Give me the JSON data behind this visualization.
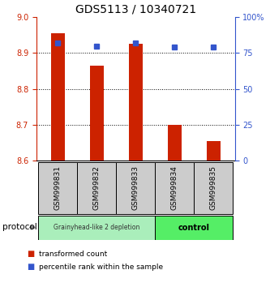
{
  "title": "GDS5113 / 10340721",
  "samples": [
    "GSM999831",
    "GSM999832",
    "GSM999833",
    "GSM999834",
    "GSM999835"
  ],
  "red_values": [
    8.955,
    8.865,
    8.925,
    8.7,
    8.655
  ],
  "blue_values": [
    82,
    80,
    82,
    79,
    79
  ],
  "baseline": 8.6,
  "ylim_left": [
    8.6,
    9.0
  ],
  "ylim_right": [
    0,
    100
  ],
  "yticks_left": [
    8.6,
    8.7,
    8.8,
    8.9,
    9.0
  ],
  "yticks_right": [
    0,
    25,
    50,
    75,
    100
  ],
  "ytick_right_labels": [
    "0",
    "25",
    "50",
    "75",
    "100%"
  ],
  "grid_lines": [
    8.7,
    8.8,
    8.9
  ],
  "red_color": "#cc2200",
  "blue_color": "#3355cc",
  "bar_width": 0.35,
  "group1_label": "Grainyhead-like 2 depletion",
  "group2_label": "control",
  "group1_indices": [
    0,
    1,
    2
  ],
  "group2_indices": [
    3,
    4
  ],
  "group1_color": "#aaeebb",
  "group2_color": "#55ee66",
  "protocol_label": "protocol",
  "legend_red": "transformed count",
  "legend_blue": "percentile rank within the sample",
  "box_color": "#cccccc",
  "title_fontsize": 10,
  "tick_fontsize": 7,
  "sample_fontsize": 6.5
}
